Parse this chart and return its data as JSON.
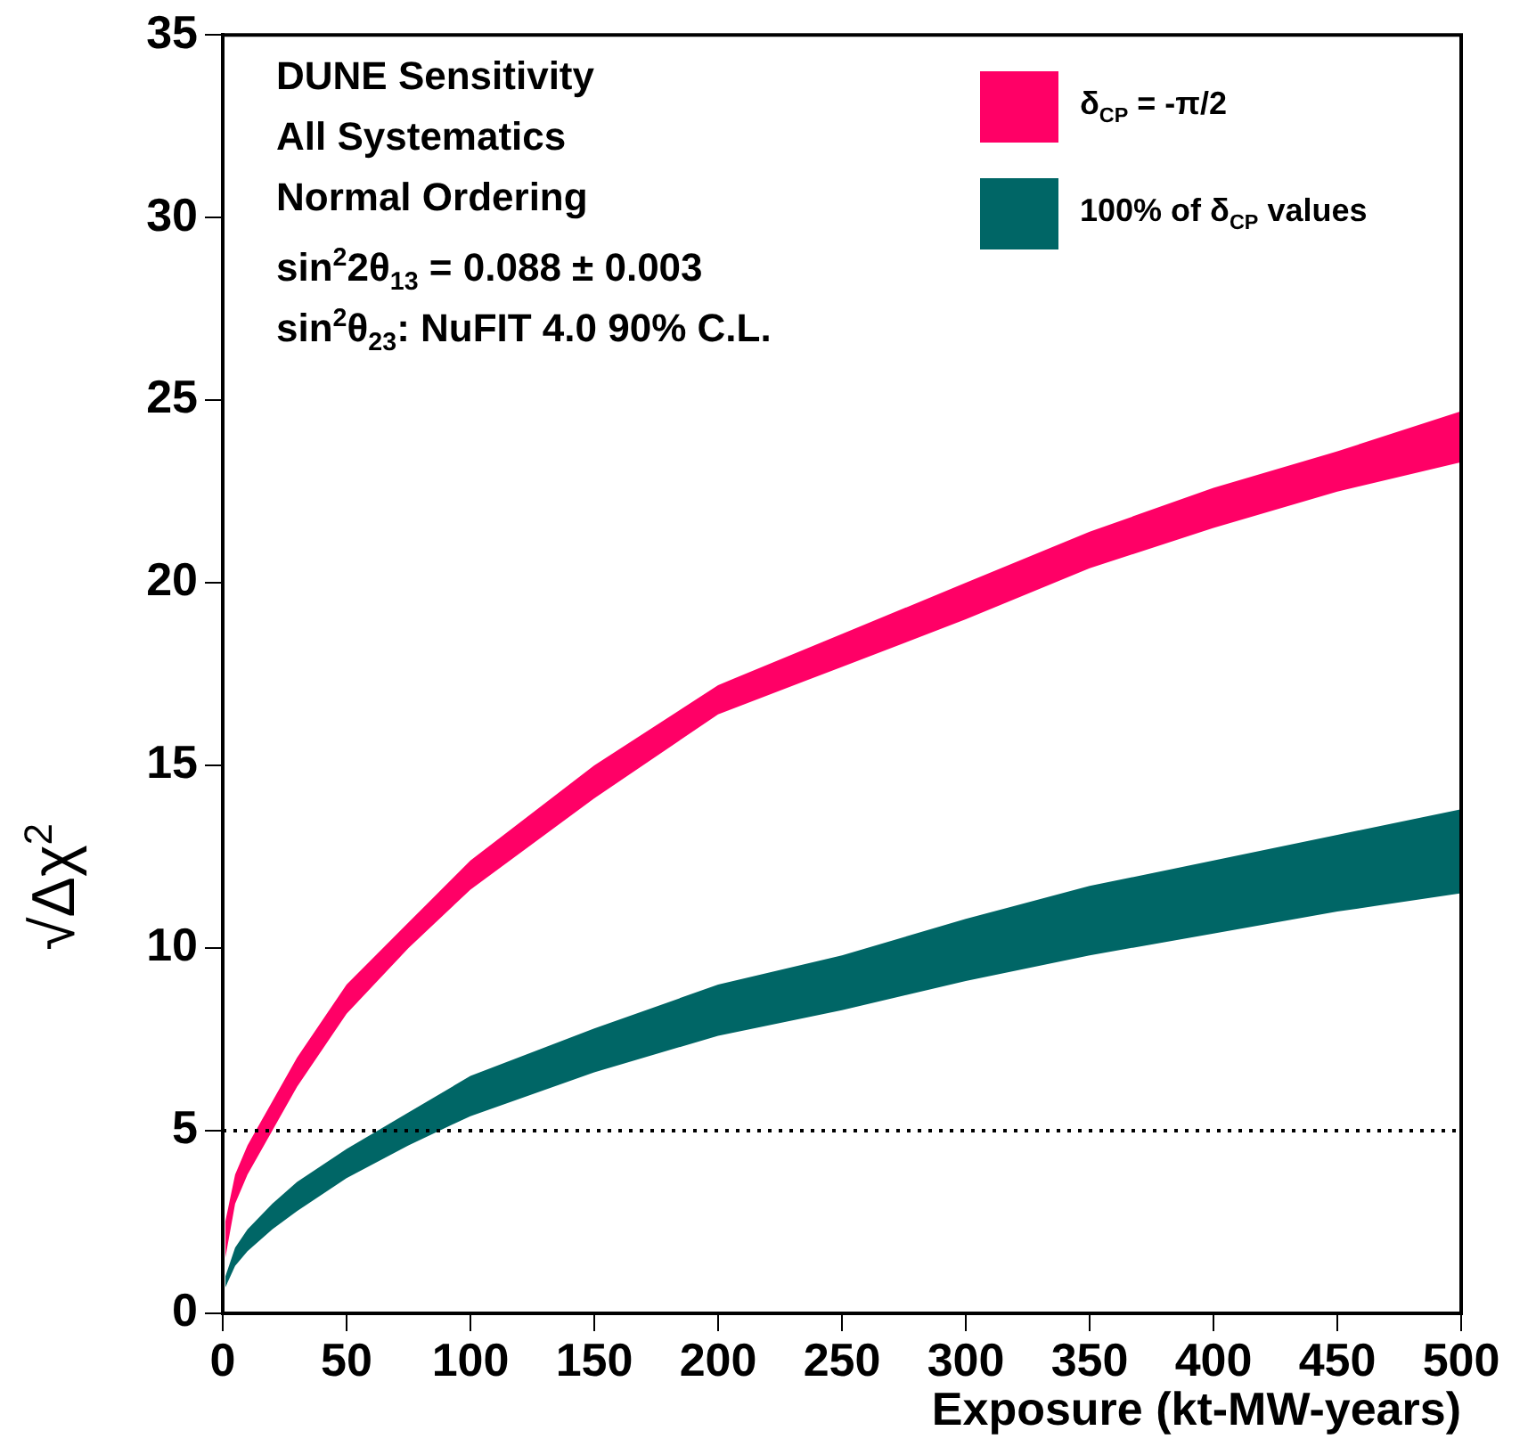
{
  "chart_data": {
    "type": "line",
    "xlabel": "Exposure (kt-MW-years)",
    "ylabel": "√Δχ$^{2}$",
    "x": [
      1,
      5,
      10,
      20,
      30,
      50,
      75,
      100,
      150,
      200,
      250,
      300,
      350,
      400,
      450,
      500
    ],
    "series": [
      {
        "name": "δ$_{CP}$ = -π/2",
        "color": "#ff0066",
        "lower": [
          1.5,
          3.0,
          3.8,
          5.0,
          6.2,
          8.2,
          10.0,
          11.6,
          14.1,
          16.4,
          17.7,
          19.0,
          20.4,
          21.5,
          22.5,
          23.3
        ],
        "upper": [
          2.5,
          3.8,
          4.6,
          5.8,
          7.0,
          9.0,
          10.7,
          12.4,
          15.0,
          17.2,
          18.6,
          20.0,
          21.4,
          22.6,
          23.6,
          24.7
        ],
        "values": [
          null,
          null,
          null,
          null,
          null,
          null,
          null,
          null,
          null,
          null,
          null,
          null,
          null,
          null,
          null,
          null
        ]
      },
      {
        "name": "100% of δ$_{CP}$ values",
        "color": "#006666",
        "lower": [
          0.7,
          1.3,
          1.7,
          2.3,
          2.8,
          3.7,
          4.6,
          5.4,
          6.6,
          7.6,
          8.3,
          9.1,
          9.8,
          10.4,
          11.0,
          11.5
        ],
        "upper": [
          1.0,
          1.8,
          2.3,
          3.0,
          3.6,
          4.5,
          5.5,
          6.5,
          7.8,
          9.0,
          9.8,
          10.8,
          11.7,
          12.4,
          13.1,
          13.8
        ],
        "values": [
          null,
          null,
          null,
          null,
          null,
          null,
          null,
          null,
          null,
          null,
          null,
          null,
          null,
          null,
          null,
          null
        ]
      }
    ],
    "xlim": [
      0,
      500
    ],
    "xticks": [
      0,
      50,
      100,
      150,
      200,
      250,
      300,
      350,
      400,
      450,
      500
    ],
    "ylim": [
      0,
      35
    ],
    "yticks": [
      0,
      5,
      10,
      15,
      20,
      25,
      30,
      35
    ],
    "ref_lines": [
      {
        "axis": "y",
        "value": 5,
        "color": "#000000",
        "line_style": "dotted"
      }
    ],
    "annotations": [
      "DUNE Sensitivity",
      "All Systematics",
      "Normal Ordering",
      "sin$^{2}$2θ$_{13}$ = 0.088 ± 0.003",
      "sin$^{2}$θ$_{23}$: NuFIT 4.0 90% C.L."
    ],
    "legend": "top right",
    "grid": false
  }
}
